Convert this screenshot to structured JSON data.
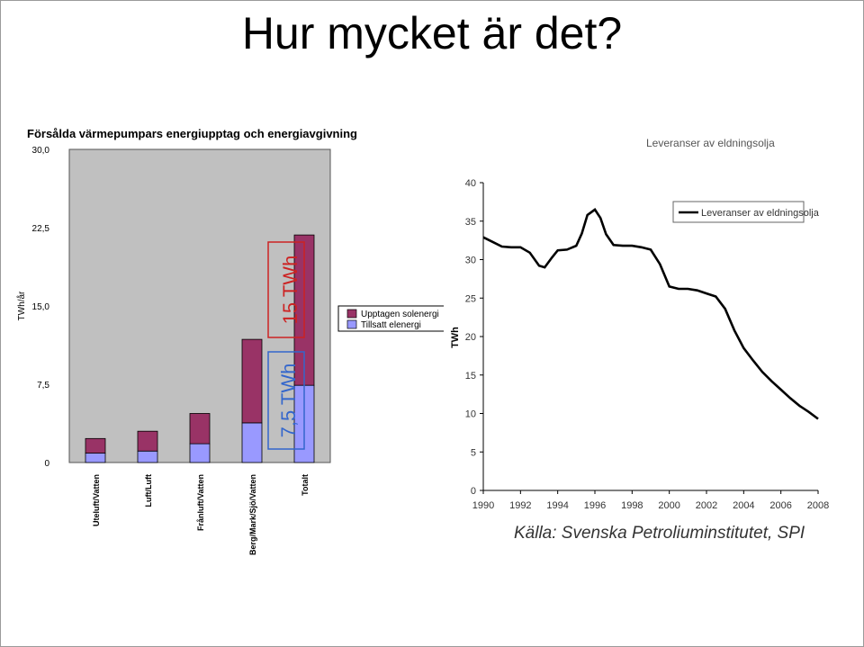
{
  "page": {
    "title": "Hur mycket är det?"
  },
  "chart_data": [
    {
      "type": "bar",
      "stacked": true,
      "title": "Försålda värmepumpars energiupptag och energiavgivning",
      "ylabel": "TWh/år",
      "xlabel": "",
      "ylim": [
        0,
        30
      ],
      "yticks": [
        "30,0",
        "22,5",
        "15,0",
        "7,5",
        "0"
      ],
      "ytick_values": [
        30,
        22.5,
        15,
        7.5,
        0
      ],
      "categories": [
        "Uteluft/Vatten",
        "Luft/Luft",
        "Frånluft/Vatten",
        "Berg/Mark/Sjö/Vatten",
        "Totalt"
      ],
      "series": [
        {
          "name": "Tillsatt elenergi",
          "color": "#9999ff",
          "values": [
            0.9,
            1.1,
            1.8,
            3.8,
            7.4
          ]
        },
        {
          "name": "Upptagen solenergi",
          "color": "#993366",
          "values": [
            1.4,
            1.9,
            2.9,
            8.0,
            14.4
          ]
        }
      ],
      "legend": "right",
      "grid": false,
      "annotations": [
        {
          "text": "15 TWh",
          "color": "#cc2222"
        },
        {
          "text": "7,5 TWh",
          "color": "#3366cc"
        }
      ]
    },
    {
      "type": "line",
      "title": "Leveranser av eldningsolja",
      "ylabel": "TWh",
      "ylim": [
        0,
        40
      ],
      "yticks": [
        "0",
        "5",
        "10",
        "15",
        "20",
        "25",
        "30",
        "35",
        "40"
      ],
      "xlim": [
        1990,
        2008
      ],
      "xticks": [
        "1990",
        "1992",
        "1994",
        "1996",
        "1998",
        "2000",
        "2002",
        "2004",
        "2006",
        "2008"
      ],
      "grid": false,
      "legend": "top-right",
      "series": [
        {
          "name": "Leveranser av eldningsolja",
          "color": "#000000",
          "x": [
            1990,
            1990.5,
            1991,
            1991.5,
            1992,
            1992.5,
            1993,
            1993.3,
            1993.7,
            1994,
            1994.5,
            1995,
            1995.3,
            1995.6,
            1996,
            1996.3,
            1996.6,
            1997,
            1997.5,
            1998,
            1998.5,
            1999,
            1999.5,
            2000,
            2000.5,
            2001,
            2001.5,
            2002,
            2002.5,
            2003,
            2003.5,
            2004,
            2004.5,
            2005,
            2005.5,
            2006,
            2006.5,
            2007,
            2007.5,
            2008
          ],
          "values": [
            32.9,
            32.3,
            31.7,
            31.6,
            31.6,
            30.9,
            29.2,
            29.0,
            30.3,
            31.2,
            31.3,
            31.8,
            33.4,
            35.8,
            36.5,
            35.4,
            33.3,
            31.9,
            31.8,
            31.8,
            31.6,
            31.3,
            29.4,
            26.5,
            26.2,
            26.2,
            26.0,
            25.6,
            25.2,
            23.6,
            20.8,
            18.5,
            16.9,
            15.4,
            14.2,
            13.1,
            12.0,
            11.0,
            10.2,
            9.3
          ]
        }
      ],
      "source": "Källa: Svenska Petroliuminstitutet, SPI"
    }
  ]
}
